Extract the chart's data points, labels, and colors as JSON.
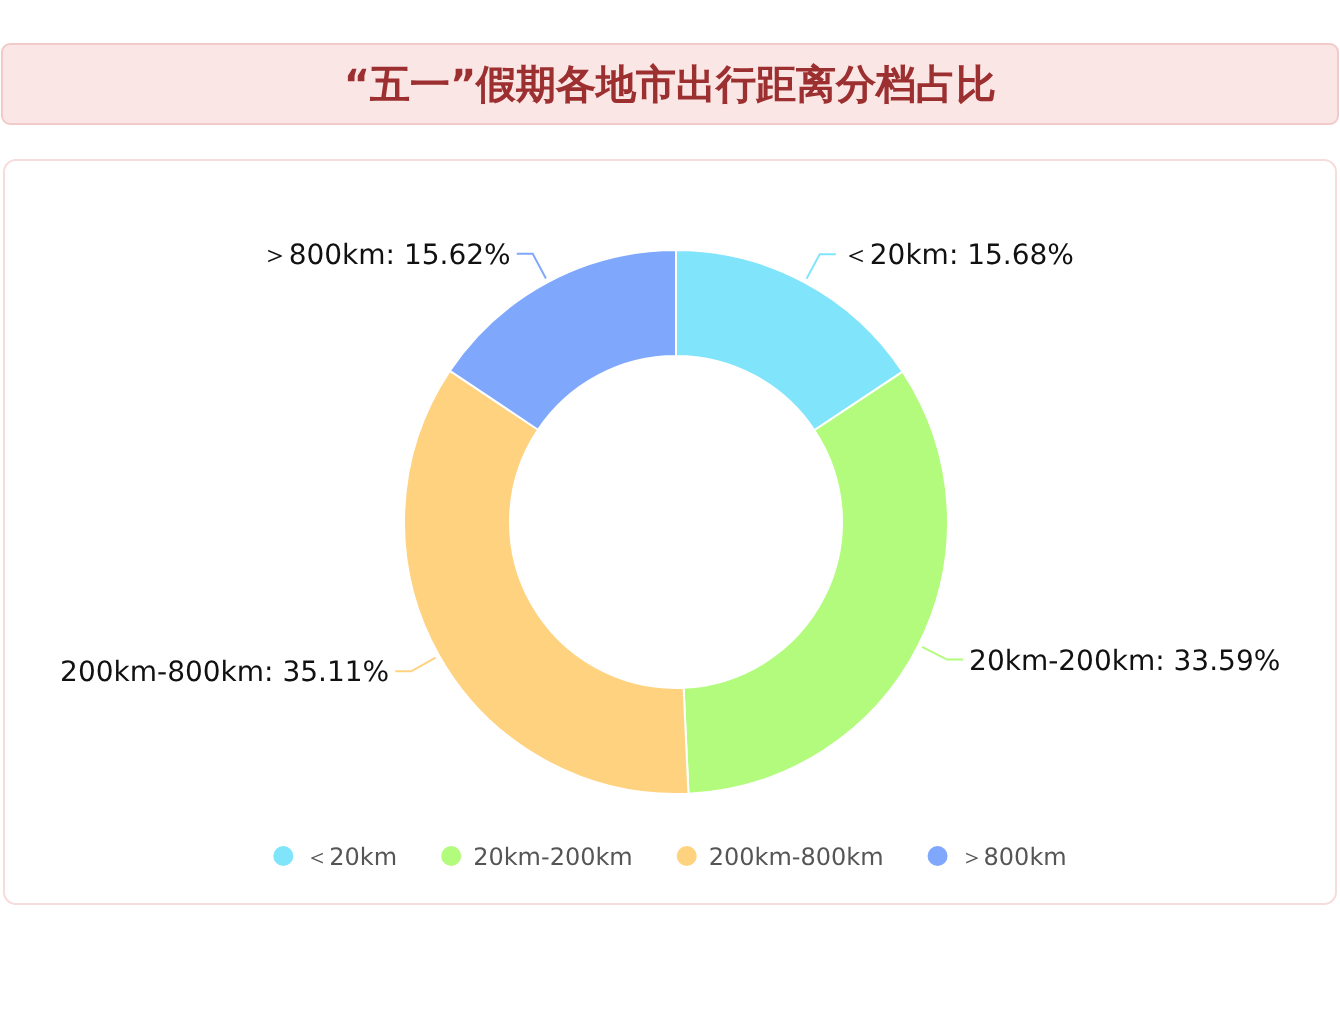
{
  "chart_data": {
    "type": "donut",
    "title": "“五一”假期各地市出行距离分档占比",
    "categories": [
      "＜20km",
      "20km-200km",
      "200km-800km",
      "＞800km"
    ],
    "values": [
      15.68,
      33.59,
      35.11,
      15.62
    ],
    "colors": [
      "#80e5fb",
      "#b3fb7d",
      "#ffd27f",
      "#7fa8fd"
    ],
    "value_labels": [
      ": 15.68%",
      ": 33.59%",
      ": 35.11%",
      ": 15.62%"
    ],
    "legend": "bottom"
  }
}
